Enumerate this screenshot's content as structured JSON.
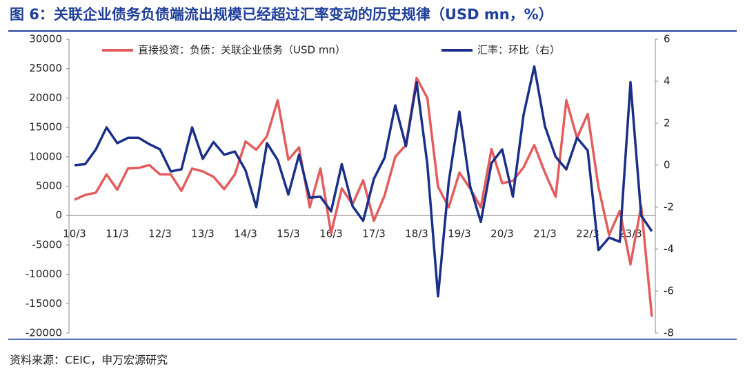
{
  "chart_data": {
    "type": "line",
    "title": "图 6：关联企业债务负债端流出规模已经超过汇率变动的历史规律（USD mn，%）",
    "source": "资料来源：CEIC，申万宏源研究",
    "categories": [
      "10/3",
      null,
      null,
      null,
      "11/3",
      null,
      null,
      null,
      "12/3",
      null,
      null,
      null,
      "13/3",
      null,
      null,
      null,
      "14/3",
      null,
      null,
      null,
      "15/3",
      null,
      null,
      null,
      "16/3",
      null,
      null,
      null,
      "17/3",
      null,
      null,
      null,
      "18/3",
      null,
      null,
      null,
      "19/3",
      null,
      null,
      null,
      "20/3",
      null,
      null,
      null,
      "21/3",
      null,
      null,
      null,
      "22/3",
      null,
      null,
      null,
      "23/3",
      null,
      null
    ],
    "series": [
      {
        "name": "直接投资：负债：关联企业债务（USD mn）",
        "color": "#e45c5c",
        "axis": "y",
        "values": [
          2700,
          3500,
          3900,
          7000,
          4400,
          8000,
          8100,
          8600,
          7000,
          7000,
          4200,
          8000,
          7500,
          6600,
          4500,
          7000,
          12600,
          11200,
          13500,
          19600,
          9500,
          11600,
          1400,
          8000,
          -3000,
          4600,
          1900,
          6000,
          -900,
          3400,
          10000,
          12000,
          23400,
          20000,
          4900,
          1400,
          7300,
          4600,
          1400,
          11300,
          5500,
          5900,
          8200,
          12000,
          7300,
          3200,
          19600,
          13200,
          17300,
          4900,
          -3300,
          800,
          -8300,
          1600,
          -17200
        ]
      },
      {
        "name": "汇率：环比（右）",
        "color": "#1a2f8a",
        "axis": "y2",
        "values": [
          0,
          0.05,
          0.75,
          1.8,
          1.05,
          1.3,
          1.3,
          1.0,
          0.75,
          -0.3,
          -0.2,
          1.8,
          0.3,
          1.1,
          0.5,
          0.65,
          -0.25,
          -2.0,
          1.05,
          0.25,
          -1.4,
          0.5,
          -1.55,
          -1.5,
          -2.2,
          0.05,
          -1.95,
          -2.65,
          -0.65,
          0.35,
          2.85,
          0.9,
          3.95,
          0.05,
          -6.25,
          -0.8,
          2.55,
          -1.0,
          -2.7,
          0.1,
          0.75,
          -1.5,
          2.4,
          4.7,
          1.85,
          0.4,
          -0.2,
          1.3,
          0.7,
          -4.05,
          -3.45,
          -3.65,
          3.95,
          -2.4,
          -3.15
        ]
      }
    ],
    "ylim": [
      -20000,
      30000
    ],
    "yticks": [
      30000,
      25000,
      20000,
      15000,
      10000,
      5000,
      0,
      -5000,
      -10000,
      -15000,
      -20000
    ],
    "y2lim": [
      -8,
      6
    ],
    "y2ticks": [
      6,
      4,
      2,
      0,
      -2,
      -4,
      -6,
      -8
    ],
    "legend_position": "top"
  }
}
